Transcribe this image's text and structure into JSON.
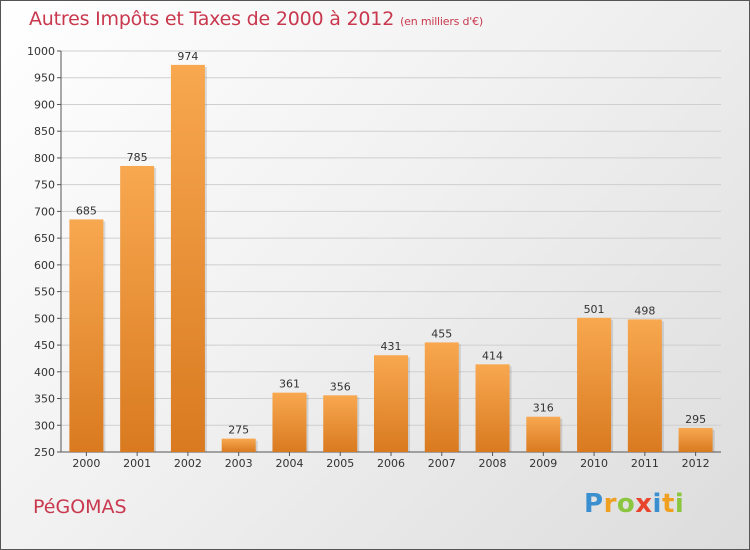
{
  "header": {
    "title": "Autres Impôts et Taxes de 2000 à 2012",
    "unit": "(en milliers d'€)"
  },
  "commune": "PéGOMAS",
  "logo": {
    "letters": [
      "P",
      "r",
      "o",
      "x",
      "i",
      "t",
      "i"
    ],
    "colors": [
      "#3a8fd0",
      "#f0a020",
      "#8cc63f",
      "#e8452c",
      "#3a8fd0",
      "#f0a020",
      "#8cc63f"
    ]
  },
  "colors": {
    "title": "#c9384e",
    "bar_light": "#f8a850",
    "bar_dark": "#d97a20"
  },
  "chart_data": {
    "type": "bar",
    "title": "Autres Impôts et Taxes de 2000 à 2012",
    "categories": [
      "2000",
      "2001",
      "2002",
      "2003",
      "2004",
      "2005",
      "2006",
      "2007",
      "2008",
      "2009",
      "2010",
      "2011",
      "2012"
    ],
    "values": [
      685,
      785,
      974,
      275,
      361,
      356,
      431,
      455,
      414,
      316,
      501,
      498,
      295
    ],
    "ylim": [
      250,
      1000
    ],
    "yticks": [
      250,
      300,
      350,
      400,
      450,
      500,
      550,
      600,
      650,
      700,
      750,
      800,
      850,
      900,
      950,
      1000
    ],
    "grid": true,
    "xlabel": "",
    "ylabel": ""
  }
}
